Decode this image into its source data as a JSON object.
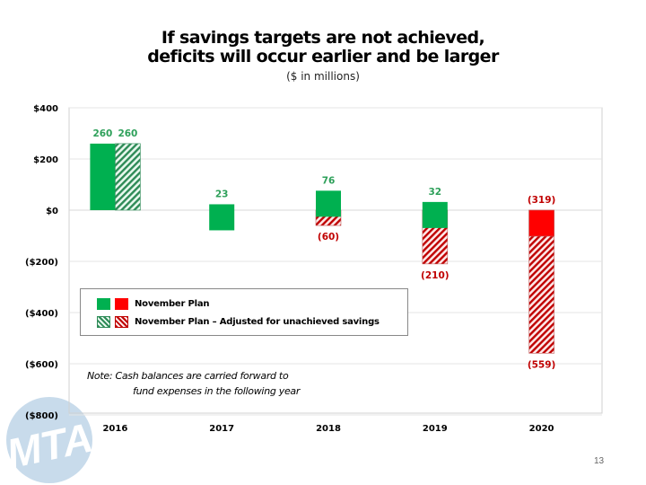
{
  "slide": {
    "title_line1": "If savings targets are not achieved,",
    "title_line2": "deficits will occur earlier and be larger",
    "subtitle": "($ in millions)",
    "note_line1": "Note:  Cash balances are carried forward to",
    "note_line2": "fund expenses in the following year",
    "page_number": "13",
    "logo_text": "MTA"
  },
  "colors": {
    "green": "#00b050",
    "red": "#ff0000",
    "green_hatch": "#2e8b57",
    "red_hatch": "#c00000",
    "label_green": "#2ea05a",
    "label_red": "#c00000",
    "logo": "#c8dbeb"
  },
  "legend": {
    "items": [
      {
        "label": "November Plan",
        "swatches": [
          "green",
          "red"
        ]
      },
      {
        "label": "November Plan – Adjusted for unachieved savings",
        "swatches": [
          "green-hatched",
          "red-hatched"
        ]
      }
    ]
  },
  "chart_data": {
    "type": "bar",
    "title": "If savings targets are not achieved, deficits will occur earlier and be larger",
    "subtitle": "($ in millions)",
    "xlabel": "",
    "ylabel": "",
    "categories": [
      "2016",
      "2017",
      "2018",
      "2019",
      "2020"
    ],
    "ylim": [
      -800,
      400
    ],
    "yticks": [
      400,
      200,
      0,
      -200,
      -400,
      -600,
      -800
    ],
    "ytick_labels": [
      "$400",
      "$200",
      "$0",
      "($200)",
      "($400)",
      "($600)",
      "($800)"
    ],
    "grid": true,
    "legend_position": "inside-lower-left",
    "series": [
      {
        "name": "November Plan",
        "values": [
          260,
          23,
          76,
          32,
          -319
        ],
        "labels": [
          "260",
          "23",
          "76",
          "32",
          "(319)"
        ]
      },
      {
        "name": "November Plan – Adjusted for unachieved savings",
        "values": [
          260,
          null,
          -60,
          -210,
          -559
        ],
        "labels": [
          "260",
          "",
          "(60)",
          "(210)",
          "(559)"
        ]
      }
    ]
  }
}
